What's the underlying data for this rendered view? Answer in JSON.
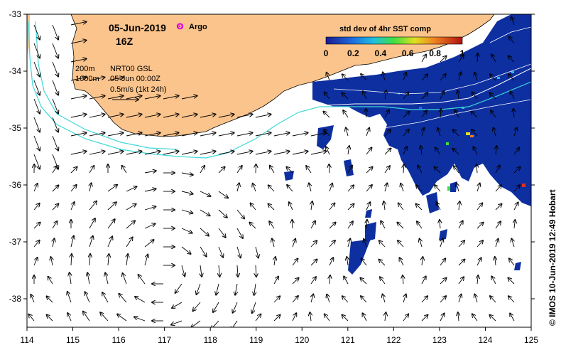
{
  "map": {
    "date": "05-Jun-2019",
    "time": "16Z",
    "argo_label": "Argo",
    "contour_200": "200m",
    "contour_1000": "1000m",
    "product": "NRT00 GSL",
    "product_time": "05-Jun 00:00Z",
    "vector_scale": "0.5m/s (1kt 24h)",
    "colorbar_title": "std dev of 4hr SST comp",
    "colorbar_ticks": [
      "0",
      "0.2",
      "0.4",
      "0.6",
      "0.8",
      "1"
    ],
    "credit": "© IMOS 10-Jun-2019 12:49 Hobart",
    "lon_ticks": [
      "114",
      "115",
      "116",
      "117",
      "118",
      "119",
      "120",
      "121",
      "122",
      "123",
      "124",
      "125"
    ],
    "lat_ticks": [
      "-33",
      "-34",
      "-35",
      "-36",
      "-37",
      "-38"
    ],
    "extent": {
      "lon": [
        114,
        125
      ],
      "lat": [
        -38.5,
        -33
      ]
    },
    "colors": {
      "land": "#fbc48c",
      "sst_low": "#0a2a9c",
      "contour_1000": "#40e0e0",
      "argo": "#e000e0"
    }
  }
}
